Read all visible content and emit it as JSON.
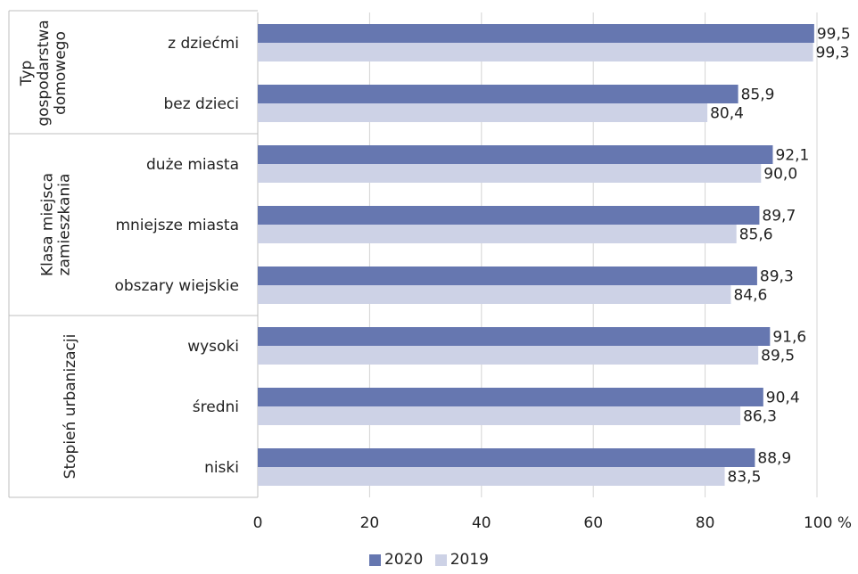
{
  "chart_data": {
    "type": "bar",
    "orientation": "horizontal",
    "groups": [
      {
        "label": "Typ gospodarstwa domowego",
        "lines": [
          "Typ",
          "gospodarstwa",
          "domowego"
        ],
        "categories": [
          "z dziećmi",
          "bez dzieci"
        ]
      },
      {
        "label": "Klasa miejsca zamieszkania",
        "lines": [
          "Klasa miejsca",
          "zamieszkania"
        ],
        "categories": [
          "duże miasta",
          "mniejsze miasta",
          "obszary wiejskie"
        ]
      },
      {
        "label": "Stopień urbanizacji",
        "lines": [
          "Stopień urbanizacji"
        ],
        "categories": [
          "wysoki",
          "średni",
          "niski"
        ]
      }
    ],
    "categories": [
      "z dziećmi",
      "bez dzieci",
      "duże miasta",
      "mniejsze miasta",
      "obszary wiejskie",
      "wysoki",
      "średni",
      "niski"
    ],
    "series": [
      {
        "name": "2020",
        "color": "#6677b0",
        "values": [
          99.5,
          85.9,
          92.1,
          89.7,
          89.3,
          91.6,
          90.4,
          88.9
        ],
        "labels": [
          "99,5",
          "85,9",
          "92,1",
          "89,7",
          "89,3",
          "91,6",
          "90,4",
          "88,9"
        ]
      },
      {
        "name": "2019",
        "color": "#cdd2e6",
        "values": [
          99.3,
          80.4,
          90.0,
          85.6,
          84.6,
          89.5,
          86.3,
          83.5
        ],
        "labels": [
          "99,3",
          "80,4",
          "90,0",
          "85,6",
          "84,6",
          "89,5",
          "86,3",
          "83,5"
        ]
      }
    ],
    "xlim": [
      0,
      100
    ],
    "xticks": [
      "0",
      "20",
      "40",
      "60",
      "80",
      "100 %"
    ],
    "grid": true,
    "legend_position": "bottom-center"
  }
}
